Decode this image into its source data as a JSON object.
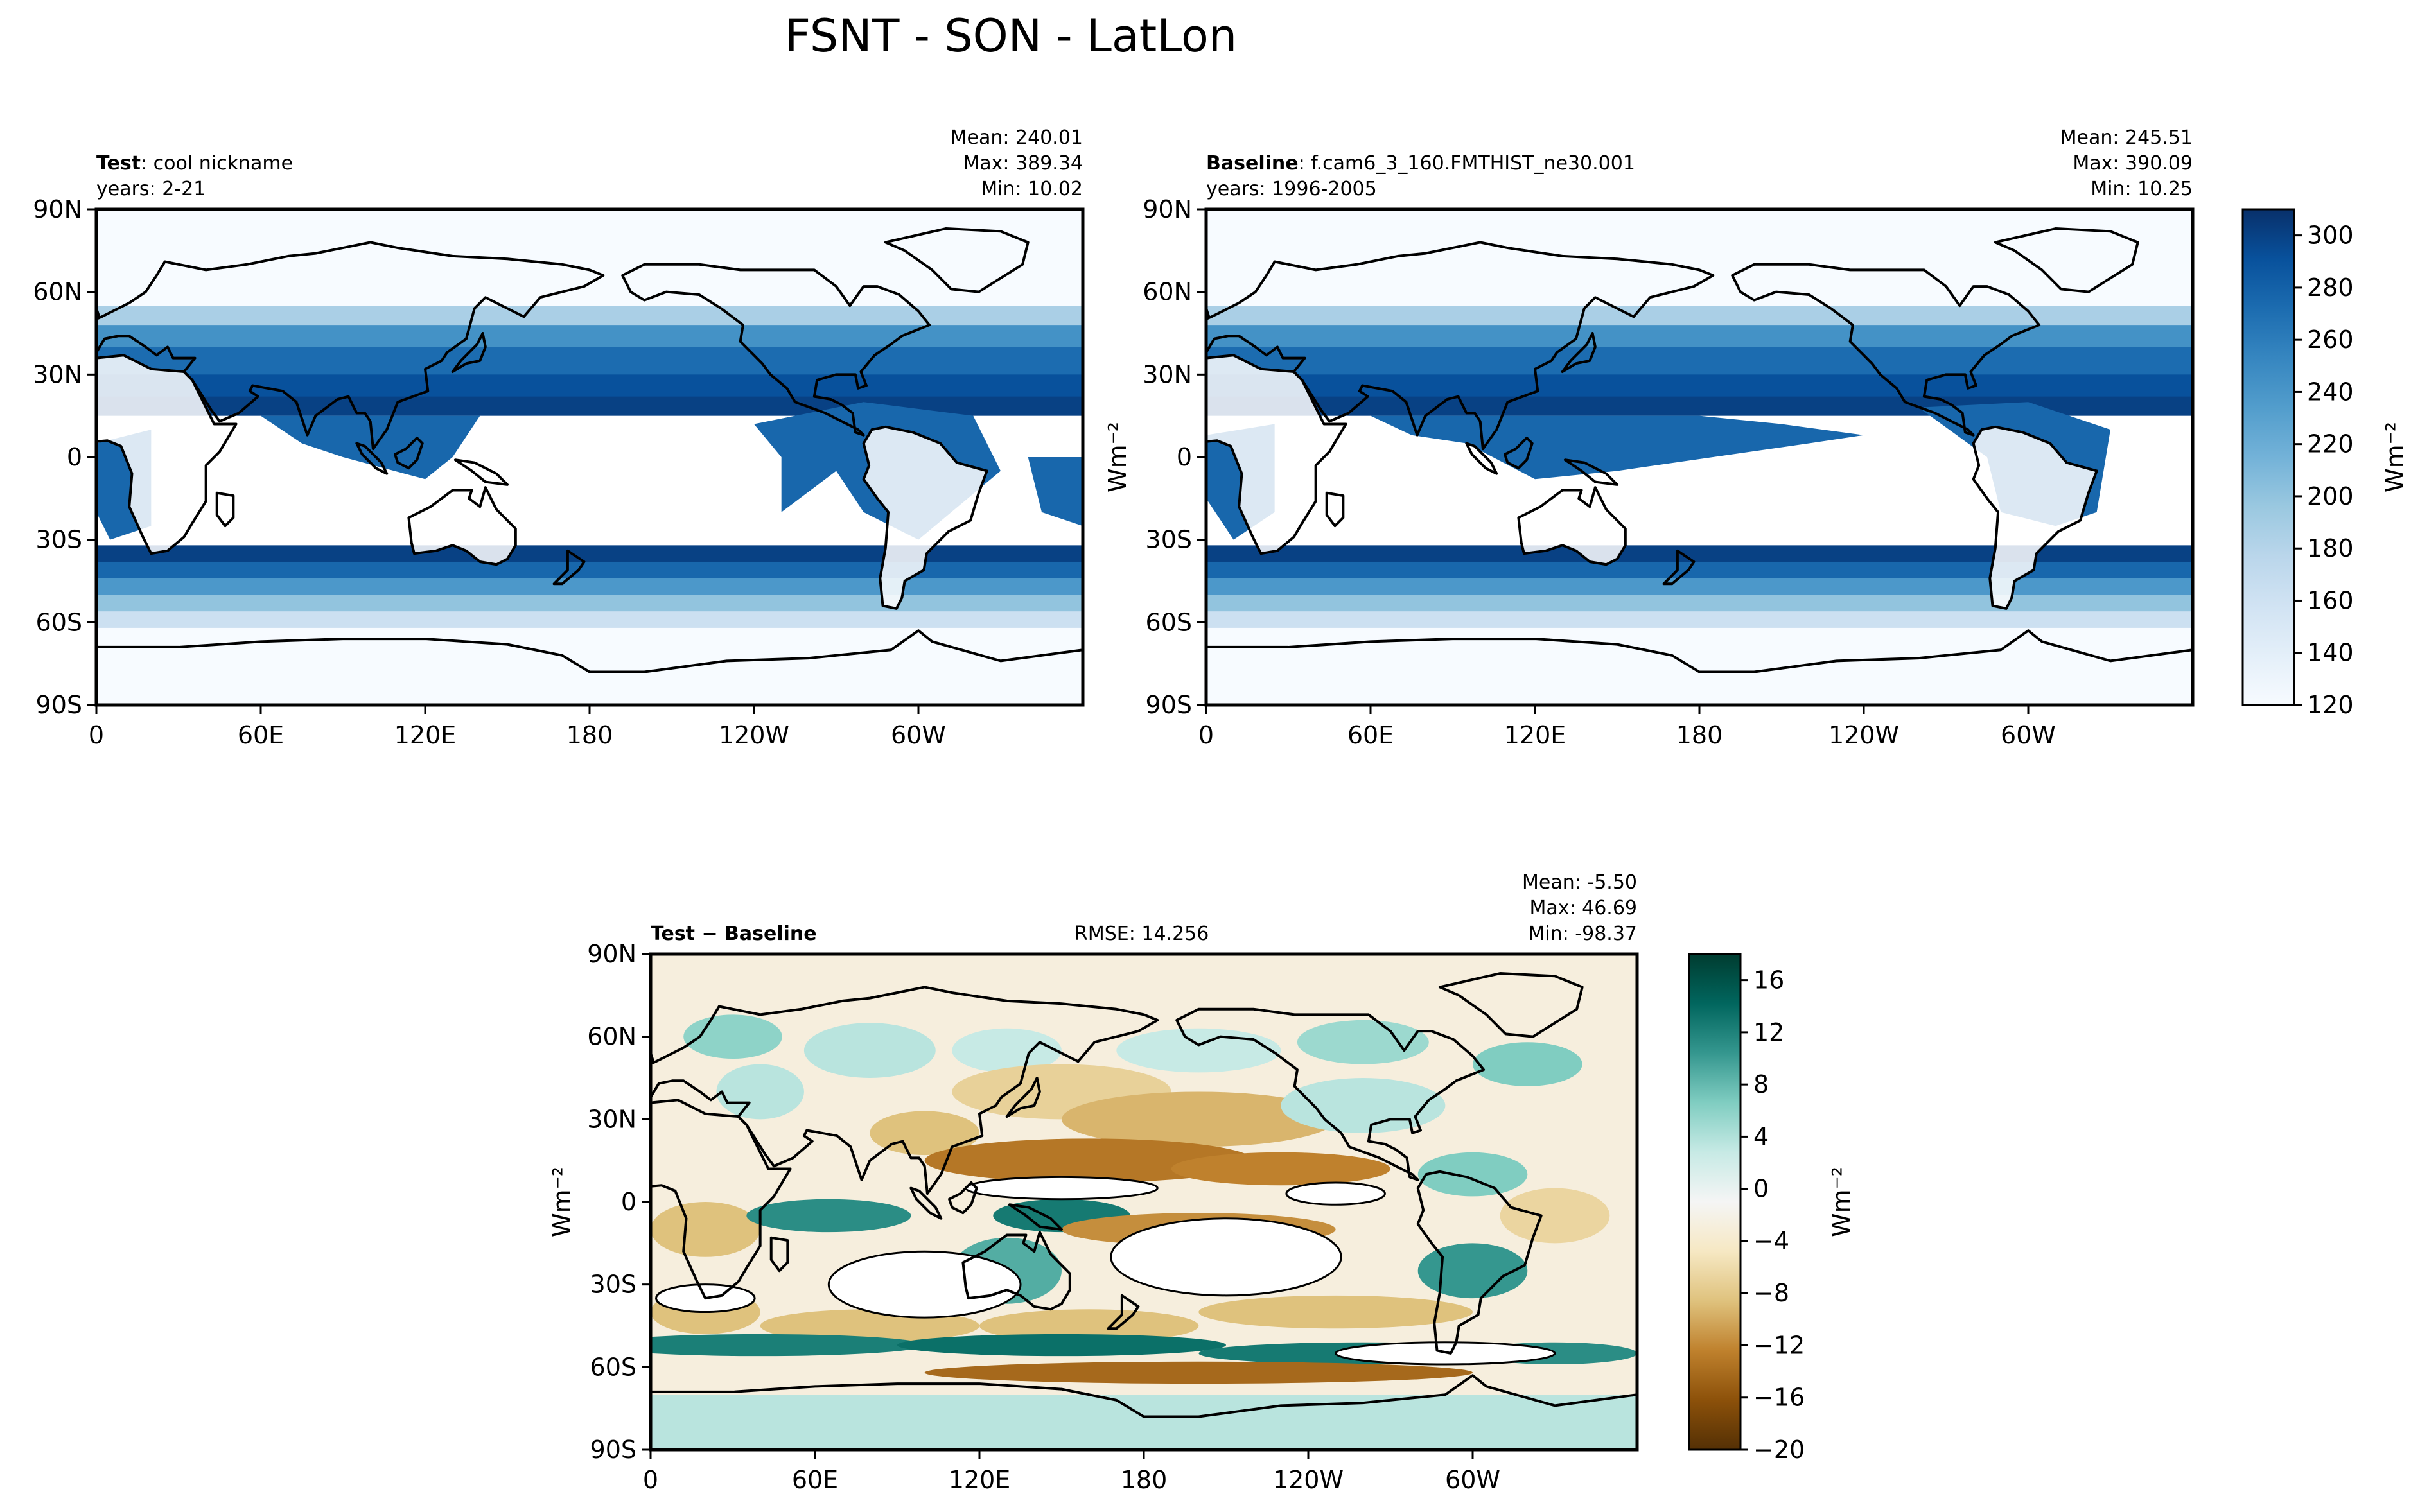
{
  "figure_title": "FSNT - SON - LatLon",
  "colors": {
    "blues": [
      "#f7fbff",
      "#e4eff9",
      "#d1e3f3",
      "#bad6eb",
      "#9ac8e0",
      "#73b2d8",
      "#529dcc",
      "#3686c0",
      "#1c6cb0",
      "#08519c",
      "#08306b"
    ],
    "brbg": [
      "#543005",
      "#8c510a",
      "#bf812d",
      "#dfc27d",
      "#f6e8c3",
      "#f5f5f5",
      "#c7eae5",
      "#80cdc1",
      "#35978f",
      "#01665e",
      "#003c30"
    ],
    "coast": "#000000"
  },
  "x_ticks": [
    "0",
    "60E",
    "120E",
    "180",
    "120W",
    "60W"
  ],
  "y_ticks": [
    "90N",
    "60N",
    "30N",
    "0",
    "30S",
    "60S",
    "90S"
  ],
  "chart_data": [
    {
      "type": "heatmap",
      "panel": "test",
      "label_bold": "Test",
      "label_rest": ": cool nickname",
      "years": "years: 2-21",
      "mean": "Mean: 240.01",
      "max": "Max: 389.34",
      "min": "Min: 10.02",
      "ylabel": "",
      "colorbar": false,
      "xlim": [
        0,
        360
      ],
      "ylim": [
        -90,
        90
      ],
      "clim": [
        120,
        310
      ],
      "field": "fsnt_test"
    },
    {
      "type": "heatmap",
      "panel": "baseline",
      "label_bold": "Baseline",
      "label_rest": ": f.cam6_3_160.FMTHIST_ne30.001",
      "years": "years: 1996-2005",
      "mean": "Mean: 245.51",
      "max": "Max: 390.09",
      "min": "Min: 10.25",
      "ylabel": "Wm⁻²",
      "colorbar": true,
      "colorbar_label": "Wm⁻²",
      "colorbar_ticks": [
        120,
        140,
        160,
        180,
        200,
        220,
        240,
        260,
        280,
        300
      ],
      "xlim": [
        0,
        360
      ],
      "ylim": [
        -90,
        90
      ],
      "clim": [
        120,
        310
      ],
      "field": "fsnt_base"
    },
    {
      "type": "heatmap",
      "panel": "diff",
      "label_bold": "Test − Baseline",
      "label_rest": "",
      "rmse": "RMSE: 14.256",
      "mean": "Mean: -5.50",
      "max": "Max: 46.69",
      "min": "Min: -98.37",
      "ylabel": "Wm⁻²",
      "colorbar": true,
      "colorbar_label": "Wm⁻²",
      "colorbar_ticks": [
        -20,
        -16,
        -12,
        -8,
        -4,
        0,
        4,
        8,
        12,
        16
      ],
      "xlim": [
        0,
        360
      ],
      "ylim": [
        -90,
        90
      ],
      "clim": [
        -20,
        18
      ],
      "field": "fsnt_diff"
    }
  ]
}
